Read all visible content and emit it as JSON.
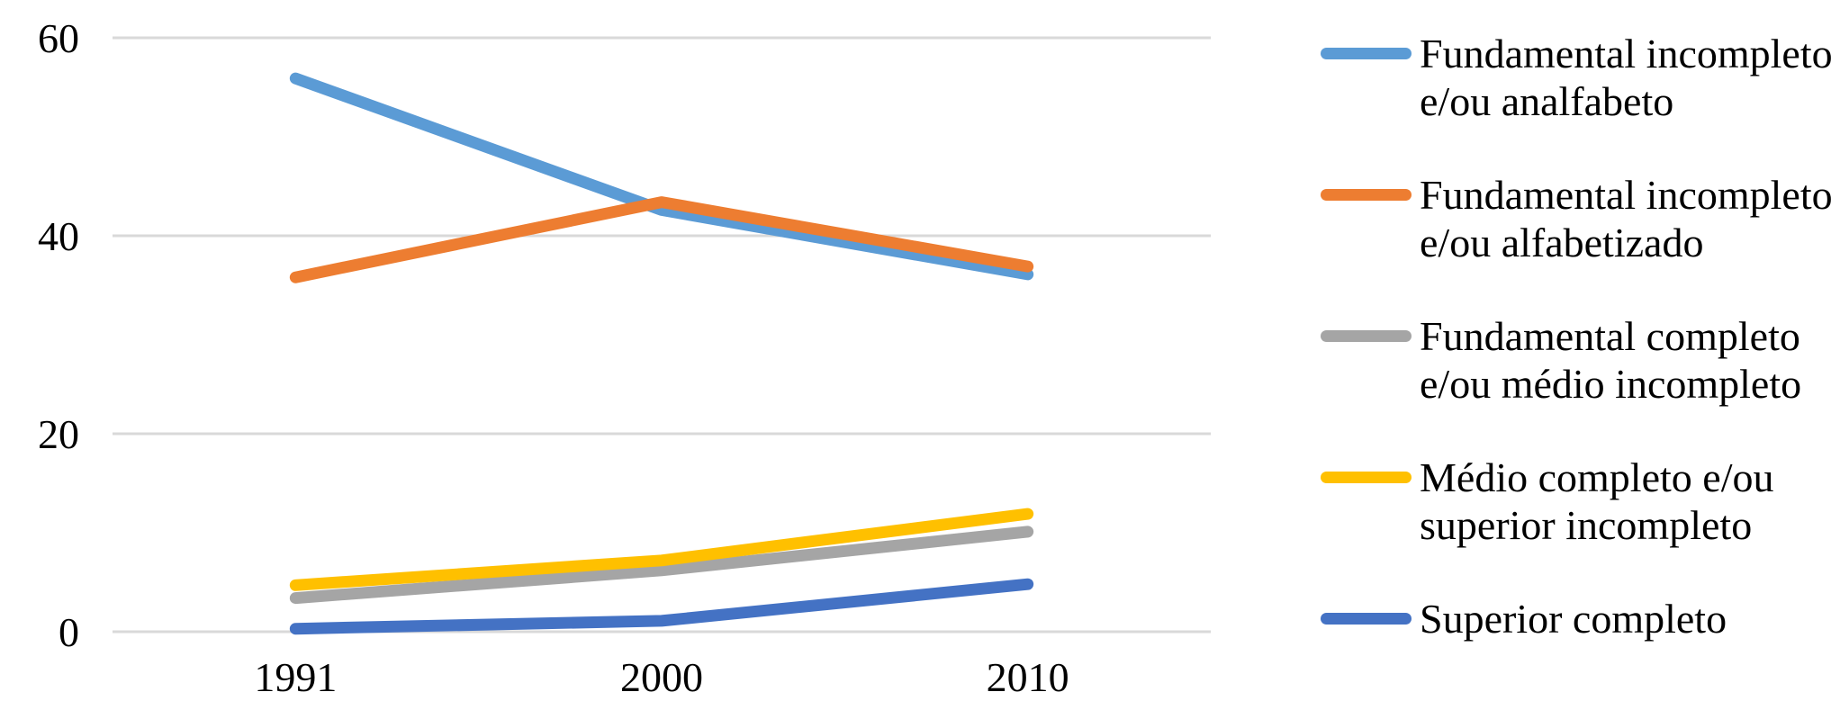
{
  "chart_data": {
    "type": "line",
    "title": "",
    "xlabel": "",
    "ylabel": "",
    "x_categories": [
      "1991",
      "2000",
      "2010"
    ],
    "y_ticks": [
      0,
      20,
      40,
      60
    ],
    "ylim": [
      0,
      60
    ],
    "grid": "horizontal",
    "legend_position": "right",
    "background_color": "#FFFFFF",
    "gridline_color": "#D9D9D9",
    "text_color": "#000000",
    "series": [
      {
        "name": "Fundamental incompleto e/ou analfabeto",
        "label_lines": [
          "Fundamental incompleto",
          "e/ou analfabeto"
        ],
        "color": "#5B9BD5",
        "values": [
          55.9,
          42.6,
          36.1
        ]
      },
      {
        "name": "Fundamental incompleto e/ou alfabetizado",
        "label_lines": [
          "Fundamental incompleto",
          "e/ou alfabetizado"
        ],
        "color": "#ED7D31",
        "values": [
          35.8,
          43.4,
          36.9
        ]
      },
      {
        "name": "Fundamental completo e/ou médio incompleto",
        "label_lines": [
          "Fundamental completo",
          "e/ou médio incompleto"
        ],
        "color": "#A5A5A5",
        "values": [
          3.4,
          6.2,
          10.1
        ]
      },
      {
        "name": "Médio completo e/ou superior incompleto",
        "label_lines": [
          "Médio completo e/ou",
          "superior incompleto"
        ],
        "color": "#FFC000",
        "values": [
          4.7,
          7.2,
          11.9
        ]
      },
      {
        "name": "Superior completo",
        "label_lines": [
          "Superior completo"
        ],
        "color": "#4472C4",
        "values": [
          0.3,
          1.1,
          4.8
        ]
      }
    ]
  }
}
